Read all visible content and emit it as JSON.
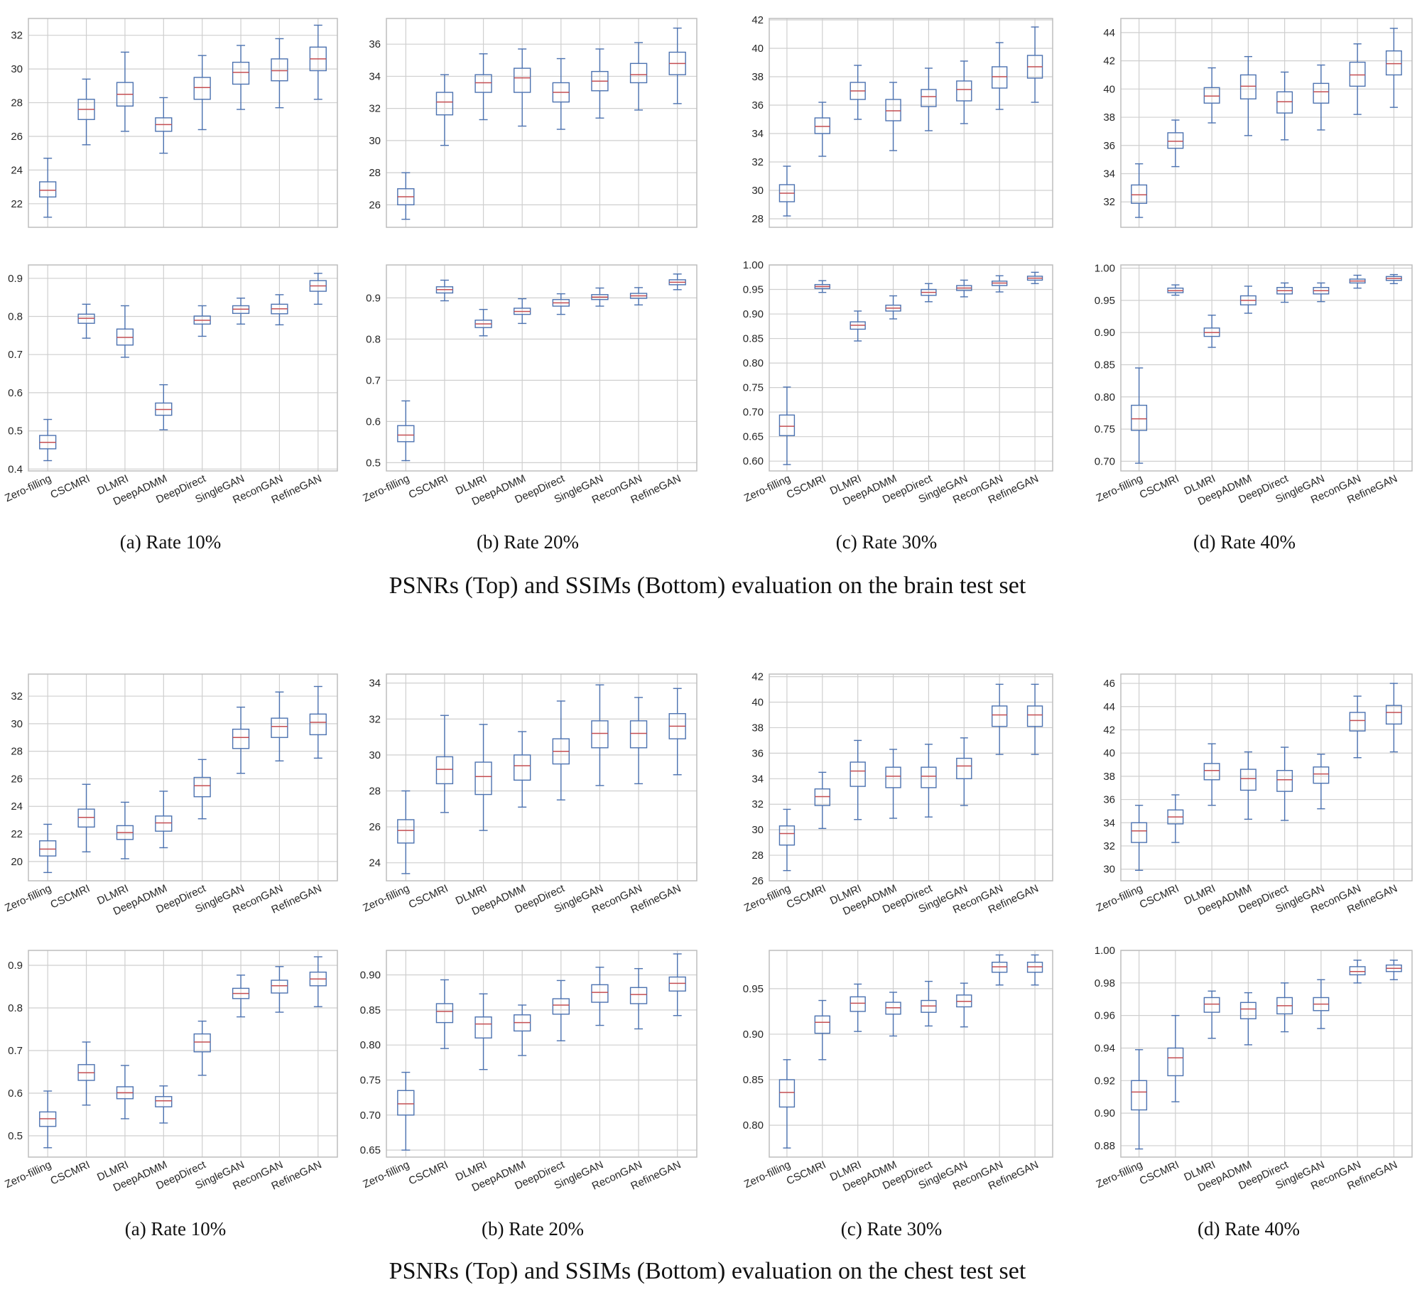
{
  "colors": {
    "box": "#4c72b0",
    "median": "#c44e52",
    "grid": "#cfcfcf",
    "frame": "#bdbdbd"
  },
  "categories": [
    "Zero-filling",
    "CSCMRI",
    "DLMRI",
    "DeepADMM",
    "DeepDirect",
    "SingleGAN",
    "ReconGAN",
    "RefineGAN"
  ],
  "captions": [
    "(a) Rate 10%",
    "(b) Rate 20%",
    "(c) Rate 30%",
    "(d) Rate 40%"
  ],
  "sections": [
    {
      "title": "PSNRs (Top) and SSIMs (Bottom) evaluation on the brain test set"
    },
    {
      "title": "PSNRs (Top) and SSIMs (Bottom) evaluation on the chest test set"
    }
  ],
  "chart_data": [
    {
      "type": "box",
      "section": 0,
      "row": "PSNR",
      "rate": "10%",
      "ylim": [
        20.6,
        33.0
      ],
      "yticks": [
        "22",
        "24",
        "26",
        "28",
        "30",
        "32"
      ],
      "grid": true,
      "boxes": [
        [
          21.2,
          22.4,
          22.8,
          23.3,
          24.7
        ],
        [
          25.5,
          27.0,
          27.6,
          28.2,
          29.4
        ],
        [
          26.3,
          27.8,
          28.5,
          29.2,
          31.0
        ],
        [
          25.0,
          26.3,
          26.7,
          27.1,
          28.3
        ],
        [
          26.4,
          28.2,
          28.9,
          29.5,
          30.8
        ],
        [
          27.6,
          29.1,
          29.8,
          30.4,
          31.4
        ],
        [
          27.7,
          29.3,
          29.9,
          30.6,
          31.8
        ],
        [
          28.2,
          29.9,
          30.6,
          31.3,
          32.6
        ]
      ]
    },
    {
      "type": "box",
      "section": 0,
      "row": "PSNR",
      "rate": "20%",
      "ylim": [
        24.6,
        37.6
      ],
      "yticks": [
        "26",
        "28",
        "30",
        "32",
        "34",
        "36"
      ],
      "grid": true,
      "boxes": [
        [
          25.1,
          26.0,
          26.5,
          27.0,
          28.0
        ],
        [
          29.7,
          31.6,
          32.4,
          33.0,
          34.1
        ],
        [
          31.3,
          33.0,
          33.6,
          34.1,
          35.4
        ],
        [
          30.9,
          33.0,
          33.9,
          34.5,
          35.7
        ],
        [
          30.7,
          32.4,
          33.0,
          33.6,
          35.1
        ],
        [
          31.4,
          33.1,
          33.7,
          34.3,
          35.7
        ],
        [
          31.9,
          33.6,
          34.1,
          34.8,
          36.1
        ],
        [
          32.3,
          34.1,
          34.8,
          35.5,
          37.0
        ]
      ]
    },
    {
      "type": "box",
      "section": 0,
      "row": "PSNR",
      "rate": "30%",
      "ylim": [
        27.4,
        42.1
      ],
      "yticks": [
        "28",
        "30",
        "32",
        "34",
        "36",
        "38",
        "40",
        "42"
      ],
      "grid": true,
      "boxes": [
        [
          28.2,
          29.2,
          29.8,
          30.4,
          31.7
        ],
        [
          32.4,
          34.0,
          34.5,
          35.1,
          36.2
        ],
        [
          35.0,
          36.4,
          37.0,
          37.6,
          38.8
        ],
        [
          32.8,
          34.9,
          35.6,
          36.4,
          37.6
        ],
        [
          34.2,
          35.9,
          36.6,
          37.1,
          38.6
        ],
        [
          34.7,
          36.3,
          37.1,
          37.7,
          39.1
        ],
        [
          35.7,
          37.2,
          38.0,
          38.7,
          40.4
        ],
        [
          36.2,
          37.9,
          38.7,
          39.5,
          41.5
        ]
      ]
    },
    {
      "type": "box",
      "section": 0,
      "row": "PSNR",
      "rate": "40%",
      "ylim": [
        30.2,
        45.0
      ],
      "yticks": [
        "32",
        "34",
        "36",
        "38",
        "40",
        "42",
        "44"
      ],
      "grid": true,
      "boxes": [
        [
          30.9,
          31.9,
          32.5,
          33.2,
          34.7
        ],
        [
          34.5,
          35.8,
          36.3,
          36.9,
          37.8
        ],
        [
          37.6,
          39.0,
          39.5,
          40.1,
          41.5
        ],
        [
          36.7,
          39.3,
          40.2,
          41.0,
          42.3
        ],
        [
          36.4,
          38.3,
          39.1,
          39.8,
          41.2
        ],
        [
          37.1,
          39.0,
          39.8,
          40.4,
          41.7
        ],
        [
          38.2,
          40.2,
          41.0,
          41.9,
          43.2
        ],
        [
          38.7,
          41.0,
          41.8,
          42.7,
          44.3
        ]
      ]
    },
    {
      "type": "box",
      "section": 0,
      "row": "SSIM",
      "rate": "10%",
      "ylim": [
        0.395,
        0.935
      ],
      "yticks": [
        "0.4",
        "0.5",
        "0.6",
        "0.7",
        "0.8",
        "0.9"
      ],
      "grid": true,
      "boxes": [
        [
          0.422,
          0.453,
          0.47,
          0.488,
          0.53
        ],
        [
          0.743,
          0.782,
          0.795,
          0.806,
          0.832
        ],
        [
          0.693,
          0.725,
          0.745,
          0.767,
          0.828
        ],
        [
          0.503,
          0.541,
          0.556,
          0.573,
          0.621
        ],
        [
          0.748,
          0.78,
          0.79,
          0.801,
          0.828
        ],
        [
          0.78,
          0.808,
          0.819,
          0.828,
          0.848
        ],
        [
          0.778,
          0.807,
          0.82,
          0.832,
          0.857
        ],
        [
          0.832,
          0.866,
          0.88,
          0.894,
          0.913
        ]
      ]
    },
    {
      "type": "box",
      "section": 0,
      "row": "SSIM",
      "rate": "20%",
      "ylim": [
        0.48,
        0.98
      ],
      "yticks": [
        "0.5",
        "0.6",
        "0.7",
        "0.8",
        "0.9"
      ],
      "grid": true,
      "boxes": [
        [
          0.505,
          0.551,
          0.567,
          0.59,
          0.65
        ],
        [
          0.893,
          0.912,
          0.92,
          0.927,
          0.943
        ],
        [
          0.808,
          0.828,
          0.837,
          0.846,
          0.872
        ],
        [
          0.838,
          0.86,
          0.867,
          0.875,
          0.898
        ],
        [
          0.86,
          0.88,
          0.888,
          0.896,
          0.91
        ],
        [
          0.88,
          0.896,
          0.902,
          0.908,
          0.924
        ],
        [
          0.883,
          0.899,
          0.905,
          0.911,
          0.925
        ],
        [
          0.92,
          0.932,
          0.938,
          0.944,
          0.958
        ]
      ]
    },
    {
      "type": "box",
      "section": 0,
      "row": "SSIM",
      "rate": "30%",
      "ylim": [
        0.58,
        1.0
      ],
      "yticks": [
        "0.60",
        "0.65",
        "0.70",
        "0.75",
        "0.80",
        "0.85",
        "0.90",
        "0.95",
        "1.00"
      ],
      "grid": true,
      "boxes": [
        [
          0.593,
          0.652,
          0.671,
          0.694,
          0.751
        ],
        [
          0.944,
          0.952,
          0.956,
          0.96,
          0.968
        ],
        [
          0.845,
          0.869,
          0.877,
          0.884,
          0.906
        ],
        [
          0.89,
          0.906,
          0.912,
          0.918,
          0.937
        ],
        [
          0.925,
          0.938,
          0.944,
          0.95,
          0.962
        ],
        [
          0.935,
          0.948,
          0.953,
          0.958,
          0.969
        ],
        [
          0.945,
          0.958,
          0.963,
          0.967,
          0.978
        ],
        [
          0.962,
          0.969,
          0.973,
          0.977,
          0.985
        ]
      ]
    },
    {
      "type": "box",
      "section": 0,
      "row": "SSIM",
      "rate": "40%",
      "ylim": [
        0.685,
        1.005
      ],
      "yticks": [
        "0.70",
        "0.75",
        "0.80",
        "0.85",
        "0.90",
        "0.95",
        "1.00"
      ],
      "grid": true,
      "boxes": [
        [
          0.697,
          0.748,
          0.766,
          0.787,
          0.845
        ],
        [
          0.958,
          0.962,
          0.965,
          0.969,
          0.974
        ],
        [
          0.877,
          0.894,
          0.9,
          0.907,
          0.927
        ],
        [
          0.93,
          0.943,
          0.95,
          0.957,
          0.972
        ],
        [
          0.947,
          0.96,
          0.965,
          0.97,
          0.977
        ],
        [
          0.948,
          0.96,
          0.965,
          0.97,
          0.977
        ],
        [
          0.969,
          0.977,
          0.98,
          0.983,
          0.989
        ],
        [
          0.976,
          0.981,
          0.984,
          0.987,
          0.99
        ]
      ]
    },
    {
      "type": "box",
      "section": 1,
      "row": "PSNR",
      "rate": "10%",
      "ylim": [
        18.6,
        33.6
      ],
      "yticks": [
        "20",
        "22",
        "24",
        "26",
        "28",
        "30",
        "32"
      ],
      "grid": true,
      "boxes": [
        [
          19.2,
          20.4,
          20.9,
          21.5,
          22.7
        ],
        [
          20.7,
          22.5,
          23.2,
          23.8,
          25.6
        ],
        [
          20.2,
          21.6,
          22.1,
          22.6,
          24.3
        ],
        [
          21.0,
          22.2,
          22.8,
          23.3,
          25.1
        ],
        [
          23.1,
          24.7,
          25.5,
          26.1,
          27.4
        ],
        [
          26.4,
          28.2,
          29.0,
          29.6,
          31.2
        ],
        [
          27.3,
          29.0,
          29.8,
          30.4,
          32.3
        ],
        [
          27.5,
          29.2,
          30.1,
          30.7,
          32.7
        ]
      ]
    },
    {
      "type": "box",
      "section": 1,
      "row": "PSNR",
      "rate": "20%",
      "ylim": [
        23.0,
        34.5
      ],
      "yticks": [
        "24",
        "26",
        "28",
        "30",
        "32",
        "34"
      ],
      "grid": true,
      "boxes": [
        [
          23.4,
          25.1,
          25.8,
          26.4,
          28.0
        ],
        [
          26.8,
          28.4,
          29.2,
          29.9,
          32.2
        ],
        [
          25.8,
          27.8,
          28.8,
          29.6,
          31.7
        ],
        [
          27.1,
          28.6,
          29.4,
          30.0,
          31.3
        ],
        [
          27.5,
          29.5,
          30.2,
          30.9,
          33.0
        ],
        [
          28.3,
          30.4,
          31.2,
          31.9,
          33.9
        ],
        [
          28.4,
          30.4,
          31.2,
          31.9,
          33.2
        ],
        [
          28.9,
          30.9,
          31.6,
          32.3,
          33.7
        ]
      ]
    },
    {
      "type": "box",
      "section": 1,
      "row": "PSNR",
      "rate": "30%",
      "ylim": [
        26.0,
        42.2
      ],
      "yticks": [
        "26",
        "28",
        "30",
        "32",
        "34",
        "36",
        "38",
        "40",
        "42"
      ],
      "grid": true,
      "boxes": [
        [
          26.8,
          28.8,
          29.7,
          30.3,
          31.6
        ],
        [
          30.1,
          31.9,
          32.6,
          33.2,
          34.5
        ],
        [
          30.8,
          33.4,
          34.6,
          35.3,
          37.0
        ],
        [
          30.9,
          33.3,
          34.2,
          34.9,
          36.3
        ],
        [
          31.0,
          33.3,
          34.2,
          34.9,
          36.7
        ],
        [
          31.9,
          34.0,
          35.0,
          35.6,
          37.2
        ],
        [
          35.9,
          38.1,
          39.0,
          39.7,
          41.4
        ],
        [
          35.9,
          38.1,
          39.0,
          39.7,
          41.4
        ]
      ]
    },
    {
      "type": "box",
      "section": 1,
      "row": "PSNR",
      "rate": "40%",
      "ylim": [
        29.0,
        46.8
      ],
      "yticks": [
        "30",
        "32",
        "34",
        "36",
        "38",
        "40",
        "42",
        "44",
        "46"
      ],
      "grid": true,
      "boxes": [
        [
          29.9,
          32.3,
          33.3,
          34.0,
          35.5
        ],
        [
          32.3,
          33.9,
          34.5,
          35.1,
          36.4
        ],
        [
          35.5,
          37.7,
          38.5,
          39.1,
          40.8
        ],
        [
          34.3,
          36.8,
          37.8,
          38.6,
          40.1
        ],
        [
          34.2,
          36.7,
          37.7,
          38.5,
          40.5
        ],
        [
          35.2,
          37.4,
          38.2,
          38.8,
          39.9
        ],
        [
          39.6,
          41.9,
          42.8,
          43.5,
          44.9
        ],
        [
          40.1,
          42.5,
          43.5,
          44.1,
          46.0
        ]
      ]
    },
    {
      "type": "box",
      "section": 1,
      "row": "SSIM",
      "rate": "10%",
      "ylim": [
        0.45,
        0.935
      ],
      "yticks": [
        "0.5",
        "0.6",
        "0.7",
        "0.8",
        "0.9"
      ],
      "grid": true,
      "boxes": [
        [
          0.472,
          0.522,
          0.54,
          0.556,
          0.605
        ],
        [
          0.572,
          0.63,
          0.648,
          0.667,
          0.72
        ],
        [
          0.54,
          0.587,
          0.601,
          0.615,
          0.665
        ],
        [
          0.53,
          0.568,
          0.582,
          0.592,
          0.617
        ],
        [
          0.642,
          0.697,
          0.72,
          0.739,
          0.769
        ],
        [
          0.779,
          0.822,
          0.834,
          0.846,
          0.877
        ],
        [
          0.79,
          0.835,
          0.852,
          0.865,
          0.897
        ],
        [
          0.803,
          0.852,
          0.868,
          0.884,
          0.92
        ]
      ]
    },
    {
      "type": "box",
      "section": 1,
      "row": "SSIM",
      "rate": "20%",
      "ylim": [
        0.64,
        0.935
      ],
      "yticks": [
        "0.65",
        "0.70",
        "0.75",
        "0.80",
        "0.85",
        "0.90"
      ],
      "grid": true,
      "boxes": [
        [
          0.65,
          0.7,
          0.716,
          0.735,
          0.761
        ],
        [
          0.795,
          0.832,
          0.848,
          0.859,
          0.893
        ],
        [
          0.765,
          0.81,
          0.83,
          0.84,
          0.873
        ],
        [
          0.785,
          0.82,
          0.832,
          0.843,
          0.857
        ],
        [
          0.806,
          0.844,
          0.857,
          0.866,
          0.892
        ],
        [
          0.828,
          0.861,
          0.875,
          0.886,
          0.911
        ],
        [
          0.823,
          0.859,
          0.872,
          0.882,
          0.909
        ],
        [
          0.842,
          0.877,
          0.888,
          0.897,
          0.93
        ]
      ]
    },
    {
      "type": "box",
      "section": 1,
      "row": "SSIM",
      "rate": "30%",
      "ylim": [
        0.765,
        0.992
      ],
      "yticks": [
        "0.80",
        "0.85",
        "0.90",
        "0.95"
      ],
      "grid": true,
      "boxes": [
        [
          0.775,
          0.82,
          0.836,
          0.85,
          0.872
        ],
        [
          0.872,
          0.901,
          0.913,
          0.92,
          0.937
        ],
        [
          0.903,
          0.925,
          0.934,
          0.941,
          0.955
        ],
        [
          0.898,
          0.922,
          0.929,
          0.935,
          0.946
        ],
        [
          0.909,
          0.924,
          0.931,
          0.937,
          0.958
        ],
        [
          0.908,
          0.93,
          0.936,
          0.943,
          0.956
        ],
        [
          0.954,
          0.968,
          0.974,
          0.979,
          0.987
        ],
        [
          0.954,
          0.968,
          0.974,
          0.979,
          0.987
        ]
      ]
    },
    {
      "type": "box",
      "section": 1,
      "row": "SSIM",
      "rate": "40%",
      "ylim": [
        0.873,
        1.0
      ],
      "yticks": [
        "0.88",
        "0.90",
        "0.92",
        "0.94",
        "0.96",
        "0.98",
        "1.00"
      ],
      "grid": true,
      "boxes": [
        [
          0.878,
          0.902,
          0.913,
          0.92,
          0.939
        ],
        [
          0.907,
          0.923,
          0.934,
          0.94,
          0.96
        ],
        [
          0.946,
          0.962,
          0.967,
          0.971,
          0.975
        ],
        [
          0.942,
          0.958,
          0.964,
          0.968,
          0.974
        ],
        [
          0.95,
          0.961,
          0.966,
          0.971,
          0.98
        ],
        [
          0.952,
          0.963,
          0.967,
          0.971,
          0.982
        ],
        [
          0.98,
          0.985,
          0.987,
          0.99,
          0.994
        ],
        [
          0.982,
          0.987,
          0.989,
          0.991,
          0.994
        ]
      ]
    }
  ]
}
